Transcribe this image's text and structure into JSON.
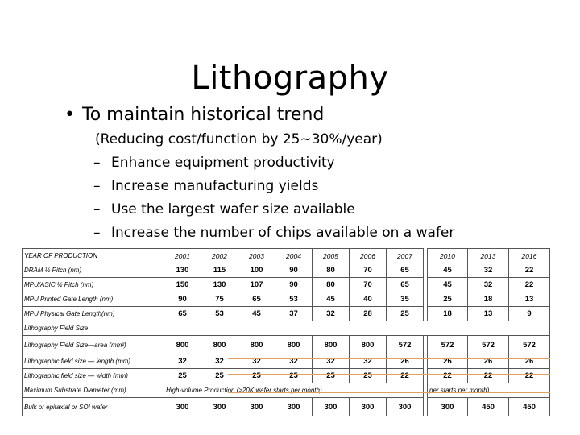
{
  "slide": {
    "title": "Lithography",
    "bullet": "To maintain historical trend",
    "subline": "(Reducing cost/function by 25~30%/year)",
    "dash_items": [
      "Enhance equipment productivity",
      "Increase manufacturing yields",
      "Use the largest wafer size available",
      "Increase the number of chips available on a wafer"
    ]
  },
  "table": {
    "header_label": "YEAR OF PRODUCTION",
    "years": [
      "2001",
      "2002",
      "2003",
      "2004",
      "2005",
      "2006",
      "2007",
      "2010",
      "2013",
      "2016"
    ],
    "rows": [
      {
        "label": "DRAM ½ Pitch (nm)",
        "values": [
          "130",
          "115",
          "100",
          "90",
          "80",
          "70",
          "65",
          "45",
          "32",
          "22"
        ]
      },
      {
        "label": "MPU/ASIC ½ Pitch (nm)",
        "values": [
          "150",
          "130",
          "107",
          "90",
          "80",
          "70",
          "65",
          "45",
          "32",
          "22"
        ]
      },
      {
        "label": "MPU Printed Gate Length (nm)",
        "values": [
          "90",
          "75",
          "65",
          "53",
          "45",
          "40",
          "35",
          "25",
          "18",
          "13"
        ]
      },
      {
        "label": "MPU Physical Gate Length(nm)",
        "values": [
          "65",
          "53",
          "45",
          "37",
          "32",
          "28",
          "25",
          "18",
          "13",
          "9"
        ]
      }
    ],
    "field_header": "Lithography Field Size",
    "field_rows": [
      {
        "label": "Lithography Field Size—area (mm²)",
        "values": [
          "800",
          "800",
          "800",
          "800",
          "800",
          "800",
          "572",
          "572",
          "572",
          "572"
        ]
      },
      {
        "label": "Lithographic field size — length (mm)",
        "values": [
          "32",
          "32",
          "32",
          "32",
          "32",
          "32",
          "26",
          "26",
          "26",
          "26"
        ]
      },
      {
        "label": "Lithographic field size — width (mm)",
        "values": [
          "25",
          "25",
          "25",
          "25",
          "25",
          "25",
          "22",
          "22",
          "22",
          "22"
        ]
      }
    ],
    "substrate_label": "Maximum Substrate Diameter (mm)",
    "substrate_note": "High-volume Production (>20K wafer starts per month)",
    "substrate_note_right": "per starts per month)",
    "bulk_row": {
      "label": "Bulk or epitaxial or SOI wafer",
      "values": [
        "300",
        "300",
        "300",
        "300",
        "300",
        "300",
        "300",
        "300",
        "450",
        "450"
      ]
    }
  }
}
